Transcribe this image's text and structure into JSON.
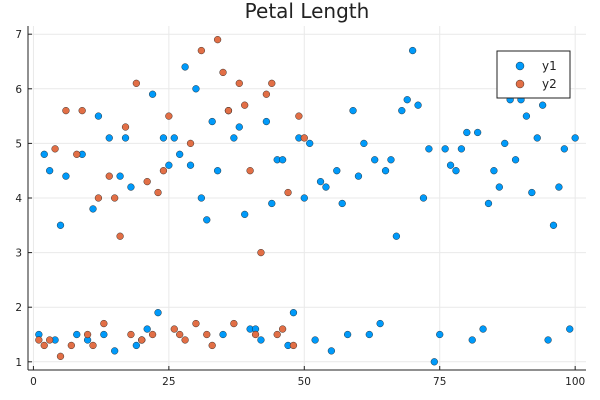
{
  "chart_data": {
    "type": "scatter",
    "title": "Petal Length",
    "xlabel": "",
    "ylabel": "",
    "xlim": [
      -1,
      102
    ],
    "ylim": [
      0.85,
      7.15
    ],
    "x_ticks": [
      0,
      25,
      50,
      75,
      100
    ],
    "y_ticks": [
      1,
      2,
      3,
      4,
      5,
      6,
      7
    ],
    "grid": true,
    "legend_position": "top-right",
    "series": [
      {
        "name": "y1",
        "color": "#009AFA",
        "x": [
          1,
          2,
          3,
          4,
          5,
          6,
          8,
          9,
          10,
          11,
          12,
          13,
          14,
          15,
          16,
          17,
          18,
          19,
          20,
          21,
          22,
          23,
          24,
          25,
          26,
          27,
          28,
          29,
          30,
          31,
          32,
          33,
          34,
          35,
          36,
          37,
          38,
          39,
          40,
          41,
          42,
          43,
          44,
          45,
          46,
          47,
          48,
          49,
          50,
          51,
          52,
          53,
          54,
          55,
          56,
          57,
          58,
          59,
          60,
          61,
          62,
          63,
          64,
          65,
          66,
          67,
          68,
          69,
          70,
          71,
          72,
          73,
          74,
          75,
          76,
          77,
          78,
          79,
          80,
          81,
          82,
          83,
          84,
          85,
          86,
          87,
          88,
          89,
          90,
          91,
          92,
          93,
          94,
          95,
          96,
          97,
          98,
          99,
          100
        ],
        "y": [
          1.5,
          4.8,
          4.5,
          1.4,
          3.5,
          4.4,
          1.5,
          4.8,
          1.4,
          3.8,
          5.5,
          1.5,
          5.1,
          1.2,
          4.4,
          5.1,
          4.2,
          1.3,
          1.4,
          1.6,
          5.9,
          1.9,
          5.1,
          4.6,
          5.1,
          4.8,
          6.4,
          4.6,
          6.0,
          4.0,
          3.6,
          5.4,
          4.5,
          1.5,
          5.6,
          5.1,
          5.3,
          3.7,
          1.6,
          1.6,
          1.4,
          5.4,
          3.9,
          4.7,
          4.7,
          1.3,
          1.9,
          5.1,
          4.0,
          5.0,
          1.4,
          4.3,
          4.2,
          1.2,
          4.5,
          3.9,
          1.5,
          5.6,
          4.4,
          5.0,
          1.5,
          4.7,
          1.7,
          4.5,
          4.7,
          3.3,
          5.6,
          5.8,
          6.7,
          5.7,
          4.0,
          4.9,
          1.0,
          1.5,
          4.9,
          4.6,
          4.5,
          4.9,
          5.2,
          1.4,
          5.2,
          1.6,
          3.9,
          4.5,
          4.2,
          5.0,
          5.8,
          4.7,
          5.8,
          5.5,
          4.1,
          5.1,
          5.7,
          1.4,
          3.5,
          4.2,
          4.9,
          1.6,
          5.1
        ]
      },
      {
        "name": "y2",
        "color": "#E26F46",
        "x": [
          1,
          2,
          3,
          4,
          5,
          6,
          7,
          8,
          9,
          10,
          11,
          12,
          13,
          14,
          15,
          16,
          17,
          18,
          19,
          20,
          21,
          22,
          23,
          24,
          25,
          26,
          27,
          28,
          29,
          30,
          31,
          32,
          33,
          34,
          35,
          36,
          37,
          38,
          39,
          40,
          41,
          42,
          43,
          44,
          45,
          46,
          47,
          48,
          49,
          50
        ],
        "y": [
          1.4,
          1.3,
          1.4,
          4.9,
          1.1,
          5.6,
          1.3,
          4.8,
          5.6,
          1.5,
          1.3,
          4.0,
          1.7,
          4.4,
          4.0,
          3.3,
          5.3,
          1.5,
          6.1,
          1.4,
          4.3,
          1.5,
          4.1,
          4.5,
          5.5,
          1.6,
          1.5,
          1.4,
          5.0,
          1.7,
          6.7,
          1.5,
          1.3,
          6.9,
          6.3,
          5.6,
          1.7,
          6.1,
          5.7,
          4.5,
          1.5,
          3.0,
          5.9,
          6.1,
          1.5,
          1.6,
          4.1,
          1.3,
          5.5,
          5.1
        ]
      }
    ]
  }
}
